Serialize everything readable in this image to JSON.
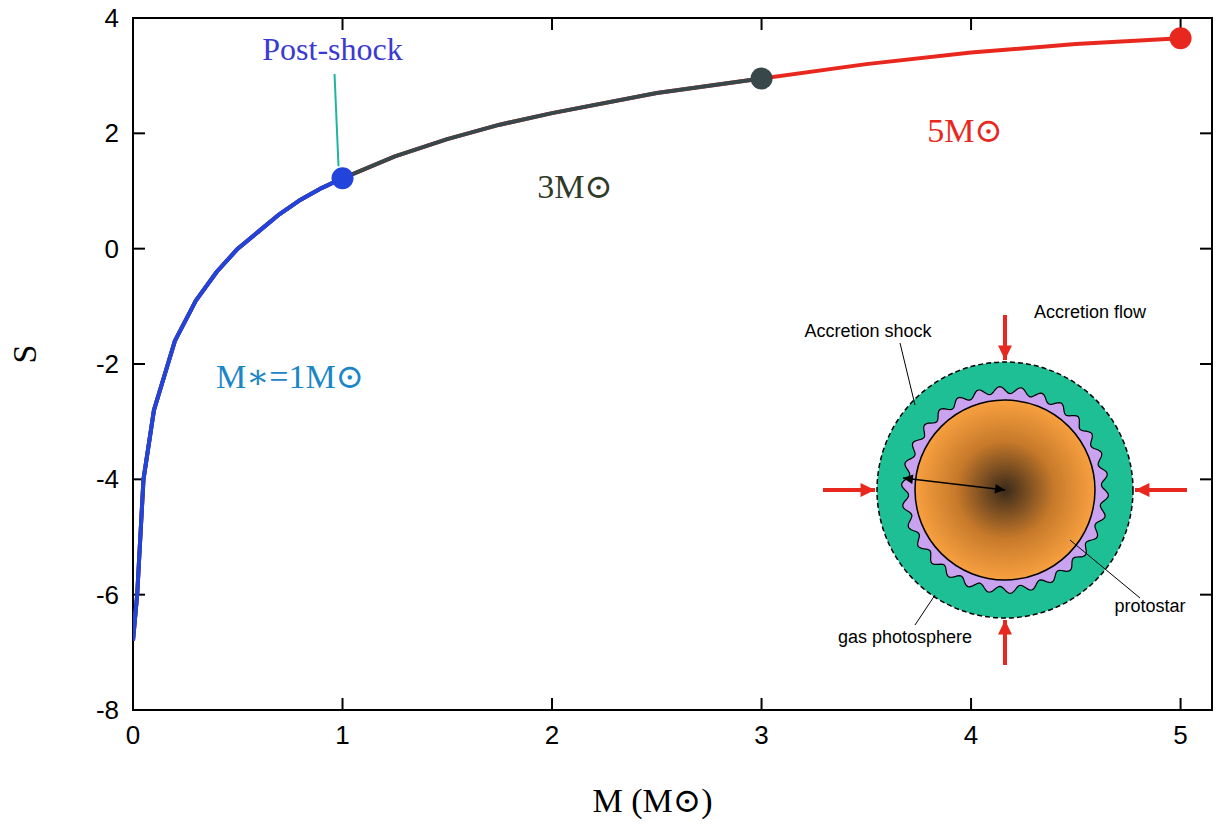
{
  "chart_data": {
    "type": "line",
    "x_label": "M (M⊙)",
    "y_label": "S",
    "x": [
      0,
      0.02,
      0.05,
      0.1,
      0.15,
      0.2,
      0.3,
      0.4,
      0.5,
      0.6,
      0.7,
      0.8,
      0.9,
      1.0,
      1.25,
      1.5,
      1.75,
      2,
      2.5,
      3,
      3.5,
      4,
      4.5,
      5
    ],
    "series": [
      {
        "name": "5M⊙",
        "color": "#e8281e",
        "marker": "end-dot",
        "values": [
          -6.8,
          -6,
          -4,
          -2.8,
          -2.2,
          -1.6,
          -0.9,
          -0.4,
          0,
          0.3,
          0.6,
          0.85,
          1.05,
          1.22,
          1.6,
          1.9,
          2.15,
          2.35,
          2.7,
          2.95,
          3.2,
          3.4,
          3.55,
          3.65
        ]
      },
      {
        "name": "3M⊙",
        "color": "#37474a",
        "marker": "end-dot",
        "values": [
          -6.8,
          -6,
          -4,
          -2.8,
          -2.2,
          -1.6,
          -0.9,
          -0.4,
          0,
          0.3,
          0.6,
          0.85,
          1.05,
          1.22,
          1.6,
          1.9,
          2.15,
          2.35,
          2.7,
          2.95,
          null,
          null,
          null,
          null
        ]
      },
      {
        "name": "M∗=1M⊙",
        "color": "#2244dd",
        "marker": "end-dot",
        "values": [
          -6.8,
          -6,
          -4,
          -2.8,
          -2.2,
          -1.6,
          -0.9,
          -0.4,
          0,
          0.3,
          0.6,
          0.85,
          1.05,
          1.22,
          null,
          null,
          null,
          null,
          null,
          null,
          null,
          null,
          null,
          null
        ]
      }
    ],
    "annotations": [
      {
        "text": "Post-shock"
      }
    ],
    "xlim": [
      0,
      5.15
    ],
    "xticks": [
      0,
      1,
      2,
      3,
      4,
      5
    ],
    "ylim": [
      -8,
      4
    ],
    "yticks": [
      -8,
      -6,
      -4,
      -2,
      0,
      2,
      4
    ],
    "grid": false
  },
  "inset": {
    "labels": [
      "Accretion shock",
      "Accretion flow",
      "gas photosphere",
      "protostar"
    ]
  }
}
